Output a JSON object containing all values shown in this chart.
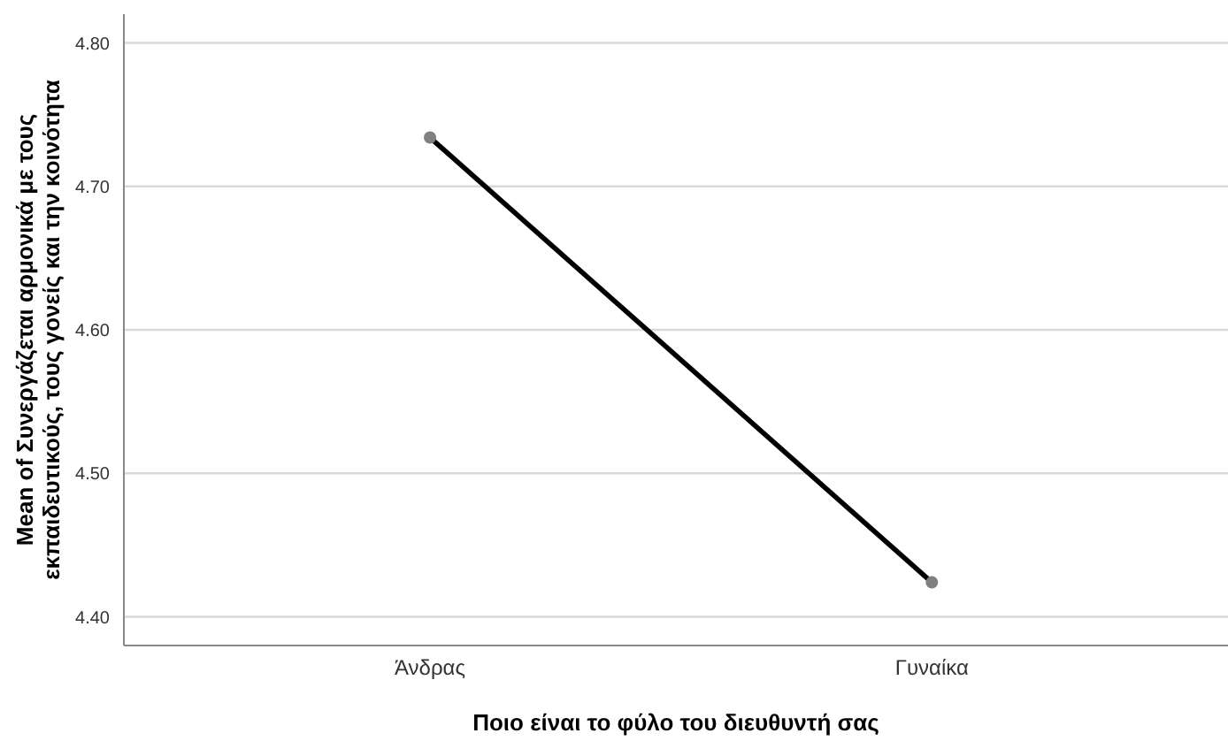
{
  "chart_data": {
    "type": "line",
    "categories": [
      "Άνδρας",
      "Γυναίκα"
    ],
    "series": [
      {
        "color": "#000000",
        "values": [
          4.734,
          4.424
        ]
      }
    ],
    "xlabel": "Ποιο είναι το φύλο του διευθυντή σας",
    "ylabel": "Mean of Συνεργάζεται αρμονικά με τους\nεκπαιδευτικούς, τους γονείς και την κοινότητα",
    "ylim": [
      4.38,
      4.82
    ],
    "yticks": [
      {
        "value": 4.4,
        "label": "4.40"
      },
      {
        "value": 4.5,
        "label": "4.50"
      },
      {
        "value": 4.6,
        "label": "4.60"
      },
      {
        "value": 4.7,
        "label": "4.70"
      },
      {
        "value": 4.8,
        "label": "4.80"
      }
    ],
    "grid": "y",
    "marker": "circle",
    "line_style": "solid",
    "legend": false
  }
}
